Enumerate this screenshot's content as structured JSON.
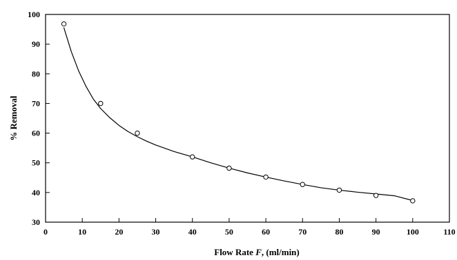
{
  "chart_data": {
    "type": "scatter",
    "title": "",
    "xlabel_parts": {
      "prefix": "Flow Rate ",
      "variable": "F",
      "suffix": ", (ml/min)"
    },
    "ylabel": "% Removal",
    "xlim": [
      0,
      110
    ],
    "ylim": [
      30,
      100
    ],
    "xticks": [
      0,
      10,
      20,
      30,
      40,
      50,
      60,
      70,
      80,
      90,
      100,
      110
    ],
    "yticks": [
      30,
      40,
      50,
      60,
      70,
      80,
      90,
      100
    ],
    "grid": false,
    "legend": "none",
    "series": [
      {
        "values": [
          {
            "x": 5,
            "y": 96.8
          },
          {
            "x": 15,
            "y": 70.0
          },
          {
            "x": 25,
            "y": 60.0
          },
          {
            "x": 40,
            "y": 52.0
          },
          {
            "x": 50,
            "y": 48.2
          },
          {
            "x": 60,
            "y": 45.2
          },
          {
            "x": 70,
            "y": 42.7
          },
          {
            "x": 80,
            "y": 40.8
          },
          {
            "x": 90,
            "y": 39.0
          },
          {
            "x": 100,
            "y": 37.2
          }
        ],
        "marker": "open-circle",
        "color": "#000000"
      }
    ],
    "fitted_curve": {
      "color": "#000000",
      "x": [
        5,
        7,
        9,
        11,
        13,
        15,
        17.5,
        20,
        22.5,
        25,
        27.5,
        30,
        35,
        40,
        45,
        50,
        55,
        60,
        65,
        70,
        75,
        80,
        85,
        90,
        95,
        100
      ],
      "y": [
        95.5,
        87.5,
        81.0,
        75.8,
        71.5,
        68.3,
        65.2,
        62.6,
        60.5,
        58.8,
        57.3,
        56.0,
        53.8,
        52.0,
        50.0,
        48.2,
        46.6,
        45.2,
        43.9,
        42.7,
        41.6,
        40.8,
        40.1,
        39.5,
        38.9,
        37.3
      ]
    }
  }
}
